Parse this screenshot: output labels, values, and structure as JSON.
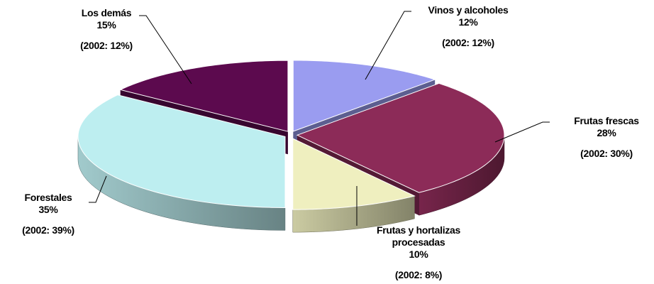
{
  "chart_data": {
    "type": "pie",
    "categories": [
      "Vinos y alcoholes",
      "Frutas frescas",
      "Frutas y hortalizas procesadas",
      "Forestales",
      "Los demás"
    ],
    "values": [
      12,
      28,
      10,
      35,
      15
    ],
    "value_labels": [
      "12%",
      "28%",
      "10%",
      "35%",
      "15%"
    ],
    "notes": [
      "(2002: 12%)",
      "(2002: 30%)",
      "(2002: 8%)",
      "(2002: 39%)",
      "(2002: 12%)"
    ],
    "colors": [
      "#9a9cf0",
      "#8c2b58",
      "#efefbf",
      "#bdeef0",
      "#5c0a4e"
    ]
  }
}
